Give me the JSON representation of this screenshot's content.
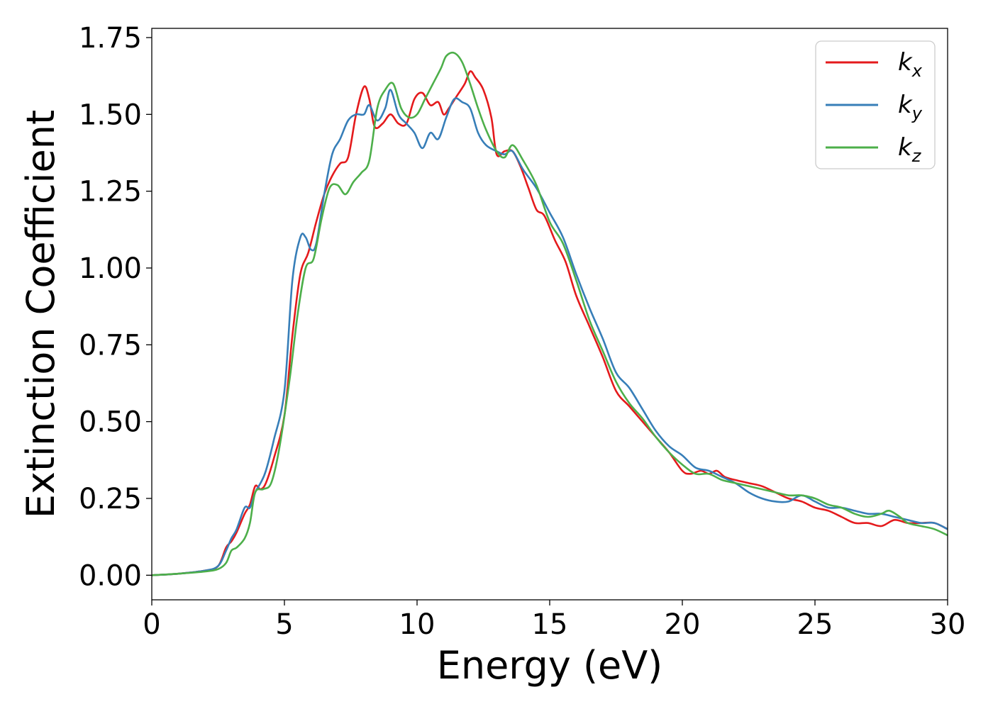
{
  "chart_data": {
    "type": "line",
    "title": "",
    "xlabel": "Energy (eV)",
    "ylabel": "Extinction Coefficient",
    "xlim": [
      0,
      30
    ],
    "ylim": [
      -0.08,
      1.78
    ],
    "xticks": [
      0,
      5,
      10,
      15,
      20,
      25,
      30
    ],
    "xtick_labels": [
      "0",
      "5",
      "10",
      "15",
      "20",
      "25",
      "30"
    ],
    "yticks": [
      0.0,
      0.25,
      0.5,
      0.75,
      1.0,
      1.25,
      1.5,
      1.75
    ],
    "ytick_labels": [
      "0.00",
      "0.25",
      "0.50",
      "0.75",
      "1.00",
      "1.25",
      "1.50",
      "1.75"
    ],
    "grid": false,
    "legend_position": "top-right",
    "series": [
      {
        "name": "k_x",
        "label_main": "k",
        "label_sub": "x",
        "color": "#e41a1c",
        "x": [
          0,
          1,
          2,
          2.5,
          2.8,
          3.0,
          3.2,
          3.5,
          3.7,
          3.9,
          4.1,
          4.3,
          4.6,
          5.0,
          5.3,
          5.6,
          5.9,
          6.2,
          6.5,
          6.8,
          7.1,
          7.4,
          7.7,
          8.0,
          8.2,
          8.4,
          8.7,
          9.0,
          9.3,
          9.6,
          9.9,
          10.2,
          10.5,
          10.8,
          11.0,
          11.2,
          11.5,
          11.8,
          12.0,
          12.2,
          12.5,
          12.8,
          13.0,
          13.3,
          13.6,
          13.9,
          14.2,
          14.5,
          14.8,
          15.2,
          15.6,
          16.0,
          16.5,
          17.0,
          17.5,
          18.0,
          18.5,
          19.0,
          19.5,
          20.0,
          20.3,
          20.7,
          21.0,
          21.3,
          21.6,
          22.0,
          22.5,
          23.0,
          23.5,
          24.0,
          24.5,
          25.0,
          25.5,
          26.0,
          26.5,
          27.0,
          27.5,
          28.0,
          28.5,
          29.0,
          29.5,
          30.0
        ],
        "y": [
          0.0,
          0.005,
          0.015,
          0.03,
          0.09,
          0.11,
          0.14,
          0.2,
          0.23,
          0.29,
          0.28,
          0.3,
          0.38,
          0.52,
          0.78,
          0.98,
          1.05,
          1.15,
          1.24,
          1.3,
          1.34,
          1.36,
          1.5,
          1.59,
          1.55,
          1.46,
          1.47,
          1.5,
          1.47,
          1.47,
          1.55,
          1.57,
          1.53,
          1.54,
          1.5,
          1.52,
          1.56,
          1.6,
          1.64,
          1.62,
          1.58,
          1.49,
          1.37,
          1.38,
          1.38,
          1.33,
          1.26,
          1.19,
          1.17,
          1.09,
          1.02,
          0.91,
          0.81,
          0.71,
          0.6,
          0.55,
          0.5,
          0.45,
          0.4,
          0.34,
          0.33,
          0.34,
          0.33,
          0.34,
          0.32,
          0.31,
          0.3,
          0.29,
          0.27,
          0.25,
          0.24,
          0.22,
          0.21,
          0.19,
          0.17,
          0.17,
          0.16,
          0.18,
          0.17,
          0.17,
          0.17,
          0.15
        ]
      },
      {
        "name": "k_y",
        "label_main": "k",
        "label_sub": "y",
        "color": "#377eb8",
        "x": [
          0,
          1,
          2,
          2.5,
          2.8,
          3.0,
          3.2,
          3.5,
          3.7,
          3.9,
          4.1,
          4.3,
          4.6,
          5.0,
          5.3,
          5.6,
          5.8,
          6.0,
          6.2,
          6.5,
          6.8,
          7.1,
          7.4,
          7.7,
          8.0,
          8.2,
          8.5,
          8.8,
          9.0,
          9.3,
          9.6,
          9.9,
          10.2,
          10.5,
          10.8,
          11.1,
          11.4,
          11.7,
          12.0,
          12.3,
          12.6,
          13.0,
          13.3,
          13.6,
          14.0,
          14.5,
          15.0,
          15.5,
          16.0,
          16.5,
          17.0,
          17.5,
          18.0,
          18.5,
          19.0,
          19.5,
          20.0,
          20.5,
          21.0,
          21.5,
          22.0,
          22.5,
          23.0,
          23.5,
          24.0,
          24.5,
          25.0,
          25.5,
          26.0,
          26.5,
          27.0,
          27.5,
          28.0,
          28.5,
          29.0,
          29.5,
          30.0
        ],
        "y": [
          0.0,
          0.005,
          0.015,
          0.03,
          0.08,
          0.12,
          0.15,
          0.22,
          0.22,
          0.27,
          0.3,
          0.34,
          0.44,
          0.6,
          0.96,
          1.1,
          1.1,
          1.06,
          1.08,
          1.24,
          1.37,
          1.42,
          1.48,
          1.5,
          1.5,
          1.53,
          1.48,
          1.52,
          1.58,
          1.5,
          1.47,
          1.44,
          1.39,
          1.44,
          1.42,
          1.49,
          1.55,
          1.54,
          1.52,
          1.44,
          1.4,
          1.38,
          1.37,
          1.38,
          1.32,
          1.26,
          1.18,
          1.1,
          0.98,
          0.87,
          0.77,
          0.66,
          0.61,
          0.54,
          0.47,
          0.42,
          0.39,
          0.35,
          0.34,
          0.32,
          0.3,
          0.27,
          0.25,
          0.24,
          0.24,
          0.26,
          0.24,
          0.22,
          0.22,
          0.21,
          0.2,
          0.2,
          0.19,
          0.18,
          0.17,
          0.17,
          0.15
        ]
      },
      {
        "name": "k_z",
        "label_main": "k",
        "label_sub": "z",
        "color": "#4daf4a",
        "x": [
          0,
          1,
          2,
          2.5,
          2.8,
          3.0,
          3.2,
          3.5,
          3.7,
          3.9,
          4.2,
          4.5,
          4.8,
          5.2,
          5.5,
          5.8,
          6.1,
          6.4,
          6.7,
          7.0,
          7.3,
          7.6,
          7.9,
          8.2,
          8.5,
          8.8,
          9.1,
          9.4,
          9.7,
          10.0,
          10.3,
          10.6,
          10.9,
          11.1,
          11.4,
          11.7,
          12.0,
          12.3,
          12.6,
          13.0,
          13.3,
          13.6,
          14.0,
          14.5,
          15.0,
          15.5,
          16.0,
          16.5,
          17.0,
          17.5,
          18.0,
          18.5,
          19.0,
          19.5,
          20.0,
          20.5,
          21.0,
          21.5,
          22.0,
          22.5,
          23.0,
          23.5,
          24.0,
          24.5,
          25.0,
          25.5,
          26.0,
          26.5,
          27.0,
          27.5,
          27.8,
          28.2,
          28.5,
          29.0,
          29.5,
          30.0
        ],
        "y": [
          0.0,
          0.005,
          0.012,
          0.02,
          0.04,
          0.08,
          0.09,
          0.12,
          0.17,
          0.27,
          0.28,
          0.3,
          0.41,
          0.64,
          0.85,
          1.0,
          1.03,
          1.16,
          1.26,
          1.27,
          1.24,
          1.28,
          1.31,
          1.35,
          1.52,
          1.58,
          1.6,
          1.52,
          1.49,
          1.5,
          1.55,
          1.6,
          1.65,
          1.69,
          1.7,
          1.67,
          1.6,
          1.52,
          1.45,
          1.38,
          1.36,
          1.4,
          1.35,
          1.27,
          1.15,
          1.08,
          0.96,
          0.83,
          0.73,
          0.63,
          0.56,
          0.51,
          0.45,
          0.4,
          0.36,
          0.33,
          0.33,
          0.31,
          0.3,
          0.29,
          0.28,
          0.27,
          0.26,
          0.26,
          0.25,
          0.23,
          0.22,
          0.2,
          0.19,
          0.2,
          0.21,
          0.19,
          0.17,
          0.16,
          0.15,
          0.13
        ]
      }
    ]
  }
}
